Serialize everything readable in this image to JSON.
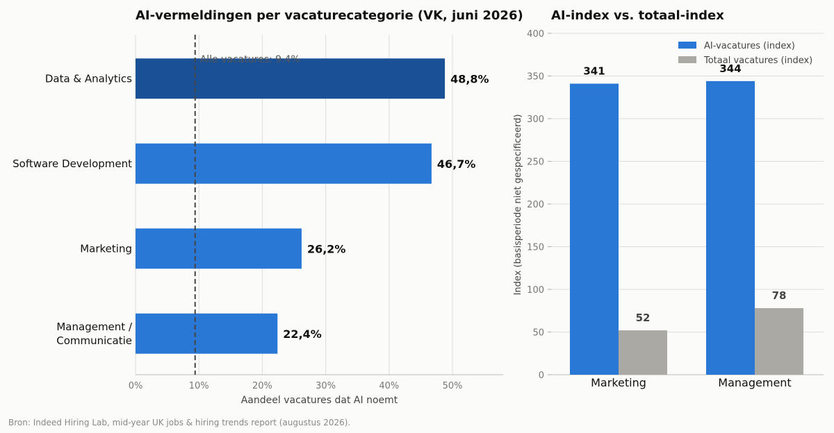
{
  "source": "Bron: Indeed Hiring Lab, mid-year UK jobs & hiring trends report (augustus 2026).",
  "chart_data": [
    {
      "type": "bar",
      "orientation": "horizontal",
      "title": "AI-vermeldingen per vacaturecategorie (VK, juni 2026)",
      "xlabel": "Aandeel vacatures dat AI noemt",
      "ylabel": "",
      "categories": [
        "Data & Analytics",
        "Software Development",
        "Marketing",
        "Management / Communicatie"
      ],
      "category_lines": [
        [
          "Data & Analytics"
        ],
        [
          "Software Development"
        ],
        [
          "Marketing"
        ],
        [
          "Management /",
          "Communicatie"
        ]
      ],
      "values": [
        48.8,
        46.7,
        26.2,
        22.4
      ],
      "value_labels": [
        "48,8%",
        "46,7%",
        "26,2%",
        "22,4%"
      ],
      "xlim": [
        0,
        58
      ],
      "xticks": [
        0,
        10,
        20,
        30,
        40,
        50
      ],
      "xtick_labels": [
        "0%",
        "10%",
        "20%",
        "30%",
        "40%",
        "50%"
      ],
      "grid": "vertical",
      "reference_line": {
        "value": 9.4,
        "label": "Alle vacatures: 9.4%"
      },
      "colors": {
        "highlight": "#1a5096",
        "default": "#2a78d6",
        "reference": "#444444"
      }
    },
    {
      "type": "bar",
      "title": "AI-index vs. totaal-index",
      "xlabel": "",
      "ylabel": "Index (basisperiode niet gespecificeerd)",
      "categories": [
        "Marketing",
        "Management"
      ],
      "series": [
        {
          "name": "AI-vacatures (index)",
          "values": [
            341,
            344
          ],
          "color": "#2a78d6",
          "label_color": "#111111"
        },
        {
          "name": "Totaal vacatures (index)",
          "values": [
            52,
            78
          ],
          "color": "#aba9a3",
          "label_color": "#444444"
        }
      ],
      "ylim": [
        0,
        400
      ],
      "yticks": [
        0,
        50,
        100,
        150,
        200,
        250,
        300,
        350,
        400
      ],
      "ytick_labels": [
        "0",
        "50",
        "100",
        "150",
        "200",
        "250",
        "300",
        "350",
        "400"
      ],
      "grid": "horizontal",
      "legend": "top-right"
    }
  ]
}
